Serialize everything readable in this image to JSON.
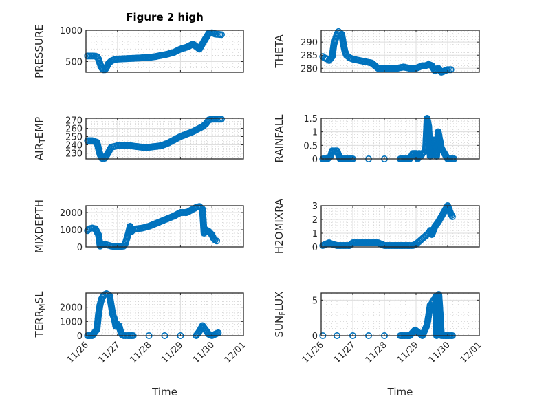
{
  "figure": {
    "title": "Figure 2 high",
    "marker_color": "#0072BD",
    "xlabel": "Time"
  },
  "chart_data": [
    {
      "type": "scatter",
      "title": "Figure 2 high",
      "ylabel": "PRESSURE",
      "ylabel_parts": [
        [
          "PRESSURE",
          ""
        ]
      ],
      "xlabel": "",
      "xticks": [
        "11/26",
        "11/27",
        "11/28",
        "11/29",
        "11/30",
        "12/01"
      ],
      "show_xticklabels": false,
      "xlim": [
        0,
        5
      ],
      "ylim": [
        330,
        1000
      ],
      "yticks": [
        500,
        1000
      ],
      "yticklabels": [
        "500",
        "1000"
      ],
      "grid": true,
      "minor_grid": true,
      "x": [
        0.05,
        0.15,
        0.25,
        0.35,
        0.4,
        0.45,
        0.5,
        0.55,
        0.6,
        0.65,
        0.7,
        0.8,
        0.9,
        1.0,
        1.2,
        1.4,
        1.6,
        1.8,
        2.0,
        2.2,
        2.4,
        2.6,
        2.8,
        3.0,
        3.2,
        3.4,
        3.6,
        3.8,
        3.9,
        4.0,
        4.05,
        4.1,
        4.2,
        4.3
      ],
      "y": [
        590,
        590,
        590,
        580,
        540,
        460,
        400,
        370,
        370,
        400,
        460,
        510,
        530,
        540,
        545,
        550,
        555,
        560,
        565,
        580,
        600,
        620,
        650,
        700,
        730,
        780,
        700,
        870,
        950,
        960,
        950,
        940,
        935,
        930
      ]
    },
    {
      "type": "scatter",
      "title": "",
      "ylabel": "THETA",
      "ylabel_parts": [
        [
          "THETA",
          ""
        ]
      ],
      "xlabel": "",
      "xticks": [
        "11/26",
        "11/27",
        "11/28",
        "11/29",
        "11/30",
        "12/01"
      ],
      "show_xticklabels": false,
      "xlim": [
        0,
        5
      ],
      "ylim": [
        278.5,
        294.5
      ],
      "yticks": [
        280,
        285,
        290
      ],
      "yticklabels": [
        "280",
        "285",
        "290"
      ],
      "grid": true,
      "minor_grid": true,
      "x": [
        0.05,
        0.1,
        0.2,
        0.25,
        0.35,
        0.4,
        0.45,
        0.5,
        0.55,
        0.6,
        0.65,
        0.7,
        0.75,
        0.8,
        0.85,
        0.9,
        1.0,
        1.2,
        1.4,
        1.6,
        1.8,
        2.0,
        2.2,
        2.4,
        2.6,
        2.8,
        3.0,
        3.2,
        3.3,
        3.4,
        3.5,
        3.6,
        3.7,
        3.8,
        3.9,
        4.0,
        4.1
      ],
      "y": [
        284.5,
        284,
        283.5,
        283,
        284.5,
        289,
        291,
        293,
        294,
        293.5,
        293,
        289.5,
        286.5,
        285,
        284.5,
        284,
        283.5,
        283,
        282.5,
        282,
        280,
        280,
        280,
        280,
        280.5,
        280,
        280,
        281,
        281,
        281.5,
        281,
        279,
        280,
        278.5,
        279,
        279.5,
        279.5
      ]
    },
    {
      "type": "scatter",
      "title": "",
      "ylabel": "AIR_TEMP",
      "ylabel_parts": [
        [
          "AIR",
          ""
        ],
        [
          "T",
          "sub"
        ],
        [
          "EMP",
          ""
        ]
      ],
      "xlabel": "",
      "xticks": [
        "11/26",
        "11/27",
        "11/28",
        "11/29",
        "11/30",
        "12/01"
      ],
      "show_xticklabels": false,
      "xlim": [
        0,
        5
      ],
      "ylim": [
        223,
        272
      ],
      "yticks": [
        230,
        240,
        250,
        260,
        270
      ],
      "yticklabels": [
        "230",
        "240",
        "250",
        "260",
        "270"
      ],
      "grid": true,
      "minor_grid": true,
      "x": [
        0.05,
        0.2,
        0.35,
        0.4,
        0.45,
        0.5,
        0.55,
        0.6,
        0.7,
        0.8,
        0.9,
        1.0,
        1.2,
        1.4,
        1.6,
        1.8,
        2.0,
        2.2,
        2.4,
        2.6,
        2.8,
        3.0,
        3.2,
        3.4,
        3.6,
        3.7,
        3.8,
        3.9,
        4.0,
        4.1,
        4.2,
        4.3
      ],
      "y": [
        245,
        245,
        243,
        235,
        228,
        224,
        223,
        224,
        230,
        237,
        238,
        239,
        239,
        239,
        238,
        237,
        237,
        238,
        239,
        242,
        246,
        250,
        253,
        256,
        260,
        262,
        265,
        270,
        271,
        271,
        271,
        271
      ]
    },
    {
      "type": "scatter",
      "title": "",
      "ylabel": "RAINFALL",
      "ylabel_parts": [
        [
          "RAINFALL",
          ""
        ]
      ],
      "xlabel": "",
      "xticks": [
        "11/26",
        "11/27",
        "11/28",
        "11/29",
        "11/30",
        "12/01"
      ],
      "show_xticklabels": false,
      "xlim": [
        0,
        5
      ],
      "ylim": [
        0,
        1.5
      ],
      "yticks": [
        0,
        0.5,
        1,
        1.5
      ],
      "yticklabels": [
        "0",
        "0.5",
        "1",
        "1.5"
      ],
      "grid": true,
      "minor_grid": true,
      "x": [
        0.05,
        0.2,
        0.3,
        0.35,
        0.45,
        0.5,
        0.6,
        0.8,
        1.0,
        1.5,
        2.0,
        2.5,
        2.8,
        2.9,
        3.0,
        3.05,
        3.1,
        3.15,
        3.2,
        3.25,
        3.3,
        3.35,
        3.4,
        3.45,
        3.5,
        3.55,
        3.6,
        3.65,
        3.7,
        3.8,
        4.0,
        4.2
      ],
      "y": [
        0,
        0,
        0.1,
        0.3,
        0.3,
        0.3,
        0,
        0,
        0,
        0,
        0,
        0,
        0,
        0.2,
        0.2,
        0,
        0.2,
        0.1,
        0.2,
        0.25,
        0.3,
        1.5,
        1.2,
        0.1,
        0.3,
        0.7,
        0.7,
        0.1,
        1.0,
        0.4,
        0,
        0
      ]
    },
    {
      "type": "scatter",
      "title": "",
      "ylabel": "MIXDEPTH",
      "ylabel_parts": [
        [
          "MIXDEPTH",
          ""
        ]
      ],
      "xlabel": "",
      "xticks": [
        "11/26",
        "11/27",
        "11/28",
        "11/29",
        "11/30",
        "12/01"
      ],
      "show_xticklabels": false,
      "xlim": [
        0,
        5
      ],
      "ylim": [
        0,
        2400
      ],
      "yticks": [
        0,
        1000,
        2000
      ],
      "yticklabels": [
        "0",
        "1000",
        "2000"
      ],
      "grid": true,
      "minor_grid": true,
      "x": [
        0.05,
        0.1,
        0.2,
        0.3,
        0.4,
        0.45,
        0.5,
        0.6,
        0.7,
        0.8,
        1.0,
        1.2,
        1.25,
        1.3,
        1.35,
        1.4,
        1.45,
        1.5,
        1.6,
        1.8,
        2.0,
        2.2,
        2.4,
        2.6,
        2.8,
        3.0,
        3.2,
        3.4,
        3.5,
        3.6,
        3.7,
        3.75,
        3.8,
        3.9,
        4.0,
        4.05,
        4.1,
        4.15
      ],
      "y": [
        950,
        1050,
        1100,
        1050,
        700,
        50,
        100,
        150,
        100,
        50,
        0,
        50,
        200,
        500,
        800,
        1200,
        900,
        1000,
        1050,
        1100,
        1200,
        1350,
        1500,
        1650,
        1800,
        2000,
        2000,
        2200,
        2300,
        2350,
        2200,
        800,
        1000,
        900,
        700,
        500,
        400,
        350
      ]
    },
    {
      "type": "scatter",
      "title": "",
      "ylabel": "H2OMIXRA",
      "ylabel_parts": [
        [
          "H2OMIXRA",
          ""
        ]
      ],
      "xlabel": "",
      "xticks": [
        "11/26",
        "11/27",
        "11/28",
        "11/29",
        "11/30",
        "12/01"
      ],
      "show_xticklabels": false,
      "xlim": [
        0,
        5
      ],
      "ylim": [
        0,
        3
      ],
      "yticks": [
        0,
        1,
        2,
        3
      ],
      "yticklabels": [
        "0",
        "1",
        "2",
        "3"
      ],
      "grid": true,
      "minor_grid": true,
      "x": [
        0.05,
        0.15,
        0.25,
        0.35,
        0.5,
        0.7,
        0.9,
        1.0,
        1.2,
        1.5,
        1.8,
        2.0,
        2.2,
        2.5,
        2.8,
        2.9,
        3.0,
        3.1,
        3.2,
        3.3,
        3.4,
        3.45,
        3.5,
        3.6,
        3.7,
        3.8,
        3.9,
        4.0,
        4.05,
        4.1,
        4.15
      ],
      "y": [
        0.1,
        0.2,
        0.3,
        0.2,
        0.1,
        0.1,
        0.1,
        0.3,
        0.3,
        0.3,
        0.3,
        0.1,
        0.1,
        0.1,
        0.1,
        0.1,
        0.2,
        0.4,
        0.6,
        0.8,
        1.0,
        1.2,
        0.9,
        1.5,
        1.8,
        2.2,
        2.6,
        3.0,
        2.7,
        2.4,
        2.2
      ]
    },
    {
      "type": "scatter",
      "title": "",
      "ylabel": "TERR_MSL",
      "ylabel_parts": [
        [
          "TERR",
          ""
        ],
        [
          "M",
          "sub"
        ],
        [
          "SL",
          ""
        ]
      ],
      "xlabel": "Time",
      "xticks": [
        "11/26",
        "11/27",
        "11/28",
        "11/29",
        "11/30",
        "12/01"
      ],
      "show_xticklabels": true,
      "xlim": [
        0,
        5
      ],
      "ylim": [
        0,
        3000
      ],
      "yticks": [
        0,
        1000,
        2000
      ],
      "yticklabels": [
        "0",
        "1000",
        "2000"
      ],
      "grid": true,
      "minor_grid": true,
      "x": [
        0.05,
        0.2,
        0.35,
        0.4,
        0.45,
        0.5,
        0.55,
        0.6,
        0.65,
        0.7,
        0.75,
        0.8,
        0.85,
        0.9,
        0.95,
        1.0,
        1.05,
        1.1,
        1.15,
        1.2,
        1.3,
        1.5,
        2.0,
        2.5,
        3.0,
        3.5,
        3.6,
        3.7,
        3.8,
        3.9,
        4.0,
        4.1,
        4.2
      ],
      "y": [
        0,
        0,
        450,
        1550,
        2200,
        2600,
        2800,
        2900,
        2950,
        2900,
        2800,
        2150,
        1500,
        1200,
        650,
        800,
        700,
        300,
        50,
        0,
        0,
        0,
        0,
        0,
        0,
        0,
        300,
        700,
        400,
        100,
        0,
        100,
        200
      ]
    },
    {
      "type": "scatter",
      "title": "",
      "ylabel": "SUN_FLUX",
      "ylabel_parts": [
        [
          "SUN",
          ""
        ],
        [
          "F",
          "sub"
        ],
        [
          "LUX",
          ""
        ]
      ],
      "xlabel": "Time",
      "xticks": [
        "11/26",
        "11/27",
        "11/28",
        "11/29",
        "11/30",
        "12/01"
      ],
      "show_xticklabels": true,
      "xlim": [
        0,
        5
      ],
      "ylim": [
        0,
        6
      ],
      "yticks": [
        0,
        5
      ],
      "yticklabels": [
        "0",
        "5"
      ],
      "grid": true,
      "minor_grid": true,
      "x": [
        0.05,
        0.5,
        1.0,
        1.5,
        2.0,
        2.5,
        2.8,
        2.97,
        3.2,
        3.35,
        3.4,
        3.45,
        3.5,
        3.52,
        3.55,
        3.6,
        3.62,
        3.65,
        3.7,
        3.72,
        3.75,
        3.8,
        3.85,
        4.0,
        4.15
      ],
      "y": [
        0,
        0,
        0,
        0,
        0,
        0,
        0,
        0.8,
        0,
        1.5,
        2.9,
        4.3,
        4.5,
        4.8,
        5.0,
        5.2,
        5.5,
        0,
        2.0,
        5.8,
        3.9,
        0,
        0,
        0,
        0
      ]
    }
  ]
}
